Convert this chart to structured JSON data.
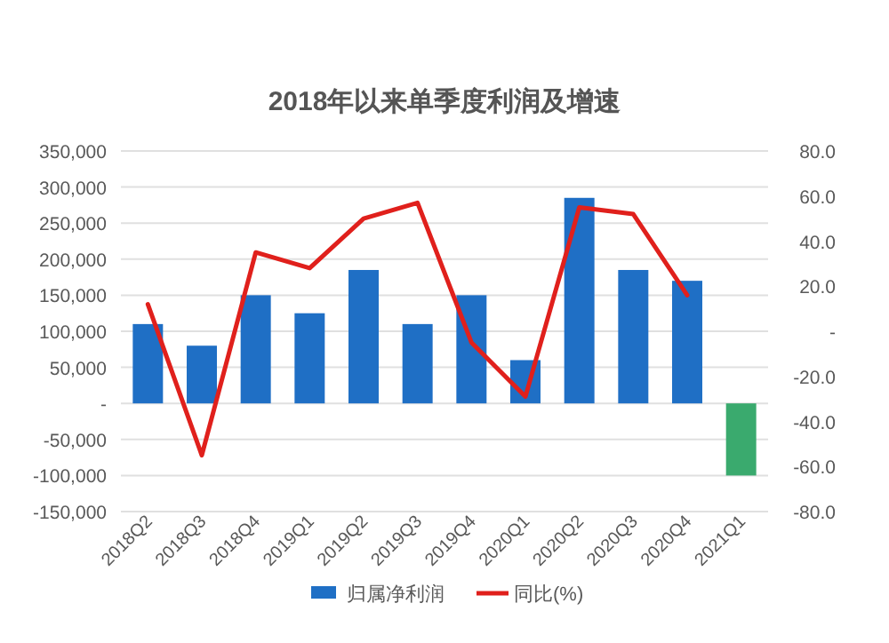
{
  "chart_data": {
    "type": "bar",
    "title": "2018年以来单季度利润及增速",
    "categories": [
      "2018Q2",
      "2018Q3",
      "2018Q4",
      "2019Q1",
      "2019Q2",
      "2019Q3",
      "2019Q4",
      "2020Q1",
      "2020Q2",
      "2020Q3",
      "2020Q4",
      "2021Q1"
    ],
    "series": [
      {
        "name": "归属净利润",
        "color": "#1f6fc5",
        "colors": [
          "#1f6fc5",
          "#1f6fc5",
          "#1f6fc5",
          "#1f6fc5",
          "#1f6fc5",
          "#1f6fc5",
          "#1f6fc5",
          "#1f6fc5",
          "#1f6fc5",
          "#1f6fc5",
          "#1f6fc5",
          "#3aaa6e"
        ],
        "values": [
          110000,
          80000,
          150000,
          125000,
          185000,
          110000,
          150000,
          60000,
          285000,
          185000,
          170000,
          -100000
        ]
      },
      {
        "name": "同比(%)",
        "type": "line",
        "axis": "y2",
        "color": "#e0201c",
        "values": [
          12,
          -55,
          35,
          28,
          50,
          57,
          -5,
          -29,
          55,
          52,
          16,
          null
        ]
      }
    ],
    "ylim": [
      -150000,
      350000
    ],
    "yticks": [
      {
        "value": 350000,
        "label": "350,000"
      },
      {
        "value": 300000,
        "label": "300,000"
      },
      {
        "value": 250000,
        "label": "250,000"
      },
      {
        "value": 200000,
        "label": "200,000"
      },
      {
        "value": 150000,
        "label": "150,000"
      },
      {
        "value": 100000,
        "label": "100,000"
      },
      {
        "value": 50000,
        "label": "50,000"
      },
      {
        "value": 0,
        "label": "-"
      },
      {
        "value": -50000,
        "label": "-50,000"
      },
      {
        "value": -100000,
        "label": "-100,000"
      },
      {
        "value": -150000,
        "label": "-150,000"
      }
    ],
    "y2lim": [
      -80,
      80
    ],
    "y2ticks": [
      {
        "value": 80,
        "label": "80.0"
      },
      {
        "value": 60,
        "label": "60.0"
      },
      {
        "value": 40,
        "label": "40.0"
      },
      {
        "value": 20,
        "label": "20.0"
      },
      {
        "value": 0,
        "label": "-"
      },
      {
        "value": -20,
        "label": "-20.0"
      },
      {
        "value": -40,
        "label": "-40.0"
      },
      {
        "value": -60,
        "label": "-60.0"
      },
      {
        "value": -80,
        "label": "-80.0"
      }
    ],
    "grid": "y",
    "legend": "bottom"
  }
}
